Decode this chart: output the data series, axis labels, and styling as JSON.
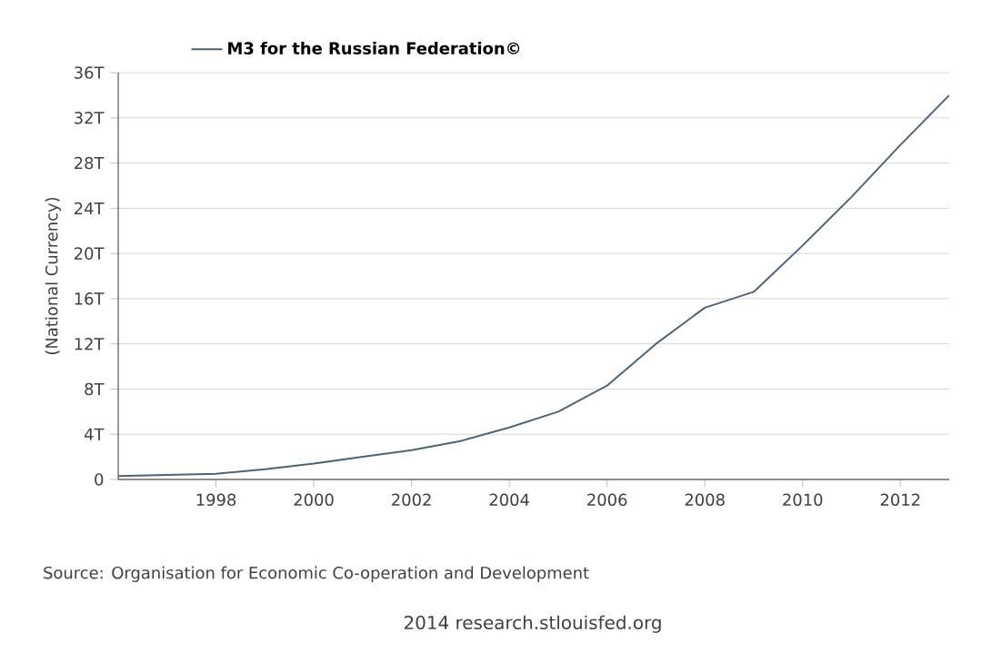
{
  "chart_data": {
    "type": "line",
    "ylabel": "(National Currency)",
    "x": [
      1996,
      1997,
      1998,
      1999,
      2000,
      2001,
      2002,
      2003,
      2004,
      2005,
      2006,
      2007,
      2008,
      2009,
      2010,
      2011,
      2012,
      2013
    ],
    "series": [
      {
        "name": "M3 for the Russian Federation©",
        "color": "#4d6478",
        "values": [
          0.3,
          0.4,
          0.5,
          0.9,
          1.4,
          2.0,
          2.6,
          3.4,
          4.6,
          6.0,
          8.3,
          12.0,
          15.2,
          16.6,
          20.7,
          25.0,
          29.6,
          34.0
        ]
      }
    ],
    "xlim": [
      1996,
      2013
    ],
    "ylim": [
      0,
      36
    ],
    "xticks": [
      1998,
      2000,
      2002,
      2004,
      2006,
      2008,
      2010,
      2012
    ],
    "yticks": [
      0,
      {
        "value": 4,
        "label": "4T"
      },
      {
        "value": 8,
        "label": "8T"
      },
      {
        "value": 12,
        "label": "12T"
      },
      {
        "value": 16,
        "label": "16T"
      },
      {
        "value": 20,
        "label": "20T"
      },
      {
        "value": 24,
        "label": "24T"
      },
      {
        "value": 28,
        "label": "28T"
      },
      {
        "value": 32,
        "label": "32T"
      },
      {
        "value": 36,
        "label": "36T"
      }
    ],
    "grid": "y",
    "legend": "top",
    "marker": "none",
    "line_style": "solid",
    "annotations": [
      "Source: Organisation for Economic Co-operation and Development",
      "2014 research.stlouisfed.org"
    ]
  }
}
